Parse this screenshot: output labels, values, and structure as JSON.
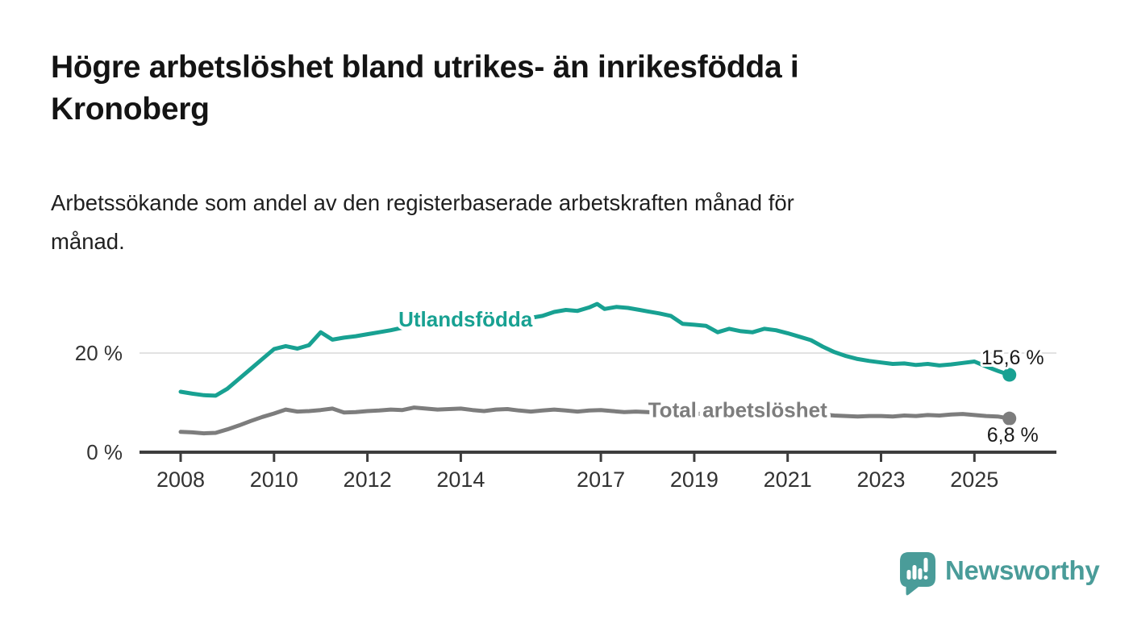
{
  "header": {
    "title_lines": [
      "Högre arbetslöshet bland utrikes- än inrikesfödda i",
      "Kronoberg"
    ],
    "subtitle_lines": [
      "Arbetssökande som andel av den registerbaserade arbetskraften månad för",
      "månad."
    ]
  },
  "chart_data": {
    "type": "line",
    "title": "Högre arbetslöshet bland utrikes- än inrikesfödda i Kronoberg",
    "subtitle": "Arbetssökande som andel av den registerbaserade arbetskraften månad för månad.",
    "x_unit": "decimal_year",
    "x_range": [
      2008.0,
      2025.75
    ],
    "grid": "horizontal-only",
    "legend_position": "inline-on-line",
    "y_axis": {
      "range": [
        0,
        33
      ],
      "ticks": [
        {
          "value": 0,
          "label": "0 %"
        },
        {
          "value": 20,
          "label": "20 %"
        }
      ]
    },
    "x_axis": {
      "tick_years": [
        2008,
        2010,
        2012,
        2014,
        2017,
        2019,
        2021,
        2023,
        2025
      ]
    },
    "series": [
      {
        "name": "Utlandsfödda",
        "color": "#18a192",
        "end_label": "15,6 %",
        "end_label_position": "above",
        "points": [
          [
            2008.0,
            12.2
          ],
          [
            2008.25,
            11.8
          ],
          [
            2008.5,
            11.5
          ],
          [
            2008.75,
            11.4
          ],
          [
            2009.0,
            12.8
          ],
          [
            2009.25,
            14.8
          ],
          [
            2009.5,
            16.8
          ],
          [
            2009.75,
            18.8
          ],
          [
            2010.0,
            20.8
          ],
          [
            2010.25,
            21.4
          ],
          [
            2010.5,
            20.9
          ],
          [
            2010.75,
            21.6
          ],
          [
            2011.0,
            24.2
          ],
          [
            2011.25,
            22.7
          ],
          [
            2011.5,
            23.1
          ],
          [
            2011.75,
            23.4
          ],
          [
            2012.0,
            23.8
          ],
          [
            2012.25,
            24.2
          ],
          [
            2012.5,
            24.6
          ],
          [
            2012.75,
            25.1
          ],
          [
            2013.0,
            25.6
          ],
          [
            2013.25,
            25.3
          ],
          [
            2013.5,
            25.8
          ],
          [
            2013.75,
            25.6
          ],
          [
            2014.0,
            26.1
          ],
          [
            2014.25,
            25.9
          ],
          [
            2014.5,
            26.3
          ],
          [
            2014.75,
            26.5
          ],
          [
            2015.0,
            26.9
          ],
          [
            2015.25,
            26.7
          ],
          [
            2015.5,
            27.1
          ],
          [
            2015.75,
            27.5
          ],
          [
            2016.0,
            28.3
          ],
          [
            2016.25,
            28.7
          ],
          [
            2016.5,
            28.5
          ],
          [
            2016.75,
            29.2
          ],
          [
            2016.92,
            29.9
          ],
          [
            2017.08,
            28.9
          ],
          [
            2017.33,
            29.3
          ],
          [
            2017.58,
            29.1
          ],
          [
            2017.83,
            28.7
          ],
          [
            2018.0,
            28.4
          ],
          [
            2018.25,
            28.0
          ],
          [
            2018.5,
            27.5
          ],
          [
            2018.75,
            25.9
          ],
          [
            2019.0,
            25.7
          ],
          [
            2019.25,
            25.5
          ],
          [
            2019.5,
            24.2
          ],
          [
            2019.75,
            24.9
          ],
          [
            2020.0,
            24.4
          ],
          [
            2020.25,
            24.2
          ],
          [
            2020.5,
            24.9
          ],
          [
            2020.75,
            24.6
          ],
          [
            2021.0,
            24.0
          ],
          [
            2021.25,
            23.3
          ],
          [
            2021.5,
            22.6
          ],
          [
            2021.75,
            21.3
          ],
          [
            2022.0,
            20.2
          ],
          [
            2022.25,
            19.4
          ],
          [
            2022.5,
            18.8
          ],
          [
            2022.75,
            18.4
          ],
          [
            2023.0,
            18.1
          ],
          [
            2023.25,
            17.8
          ],
          [
            2023.5,
            17.9
          ],
          [
            2023.75,
            17.6
          ],
          [
            2024.0,
            17.8
          ],
          [
            2024.25,
            17.5
          ],
          [
            2024.5,
            17.7
          ],
          [
            2024.75,
            18.0
          ],
          [
            2025.0,
            18.3
          ],
          [
            2025.25,
            17.3
          ],
          [
            2025.5,
            16.4
          ],
          [
            2025.75,
            15.6
          ]
        ]
      },
      {
        "name": "Total arbetslöshet",
        "color": "#7d7d7d",
        "end_label": "6,8 %",
        "end_label_position": "below",
        "points": [
          [
            2008.0,
            4.1
          ],
          [
            2008.25,
            4.0
          ],
          [
            2008.5,
            3.8
          ],
          [
            2008.75,
            3.9
          ],
          [
            2009.0,
            4.6
          ],
          [
            2009.25,
            5.4
          ],
          [
            2009.5,
            6.3
          ],
          [
            2009.75,
            7.1
          ],
          [
            2010.0,
            7.8
          ],
          [
            2010.25,
            8.6
          ],
          [
            2010.5,
            8.2
          ],
          [
            2010.75,
            8.3
          ],
          [
            2011.0,
            8.5
          ],
          [
            2011.25,
            8.8
          ],
          [
            2011.5,
            8.0
          ],
          [
            2011.75,
            8.1
          ],
          [
            2012.0,
            8.3
          ],
          [
            2012.25,
            8.4
          ],
          [
            2012.5,
            8.6
          ],
          [
            2012.75,
            8.5
          ],
          [
            2013.0,
            9.0
          ],
          [
            2013.25,
            8.8
          ],
          [
            2013.5,
            8.6
          ],
          [
            2013.75,
            8.7
          ],
          [
            2014.0,
            8.8
          ],
          [
            2014.25,
            8.5
          ],
          [
            2014.5,
            8.3
          ],
          [
            2014.75,
            8.6
          ],
          [
            2015.0,
            8.7
          ],
          [
            2015.25,
            8.4
          ],
          [
            2015.5,
            8.2
          ],
          [
            2015.75,
            8.4
          ],
          [
            2016.0,
            8.6
          ],
          [
            2016.25,
            8.4
          ],
          [
            2016.5,
            8.2
          ],
          [
            2016.75,
            8.4
          ],
          [
            2017.0,
            8.5
          ],
          [
            2017.25,
            8.3
          ],
          [
            2017.5,
            8.1
          ],
          [
            2017.75,
            8.2
          ],
          [
            2018.0,
            8.1
          ],
          [
            2018.25,
            7.9
          ],
          [
            2018.5,
            7.7
          ],
          [
            2018.75,
            7.6
          ],
          [
            2019.0,
            7.7
          ],
          [
            2019.25,
            7.8
          ],
          [
            2019.5,
            7.6
          ],
          [
            2019.75,
            7.7
          ],
          [
            2020.0,
            7.9
          ],
          [
            2020.25,
            8.4
          ],
          [
            2020.5,
            8.6
          ],
          [
            2020.75,
            8.4
          ],
          [
            2021.0,
            8.2
          ],
          [
            2021.25,
            8.0
          ],
          [
            2021.5,
            7.8
          ],
          [
            2021.75,
            7.6
          ],
          [
            2022.0,
            7.4
          ],
          [
            2022.25,
            7.3
          ],
          [
            2022.5,
            7.2
          ],
          [
            2022.75,
            7.3
          ],
          [
            2023.0,
            7.3
          ],
          [
            2023.25,
            7.2
          ],
          [
            2023.5,
            7.4
          ],
          [
            2023.75,
            7.3
          ],
          [
            2024.0,
            7.5
          ],
          [
            2024.25,
            7.4
          ],
          [
            2024.5,
            7.6
          ],
          [
            2024.75,
            7.7
          ],
          [
            2025.0,
            7.5
          ],
          [
            2025.25,
            7.3
          ],
          [
            2025.5,
            7.2
          ],
          [
            2025.75,
            6.8
          ]
        ]
      }
    ]
  },
  "branding": {
    "logo_text": "Newsworthy",
    "logo_color": "#4a9c99",
    "logo_icon": "speech-bubble-bar-chart-icon"
  }
}
